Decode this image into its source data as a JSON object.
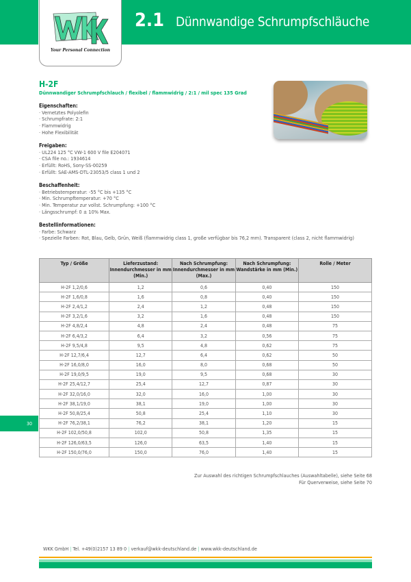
{
  "header": {
    "chapter": "2.1",
    "title": "Dünnwandige Schrumpfschläuche",
    "logo_text": "WKK",
    "tagline": "Your Personal Connection"
  },
  "product": {
    "name": "H-2F",
    "subtitle": "Dünnwandiger Schrumpfschlauch / flexibel / flammwidrig / 2:1 / mil spec 135 Grad"
  },
  "sections": [
    {
      "title": "Eigenschaften:",
      "items": [
        "· Vernetztes Polyolefin",
        "· Schrumpfrate: 2:1",
        "· Flammwidrig",
        "· Hohe Flexibilität"
      ]
    },
    {
      "title": "Freigaben:",
      "items": [
        "· UL224 125 °C VW-1 600 V file E204071",
        "· CSA file no.: 1934614",
        "· Erfüllt: RoHS, Sony-SS-00259",
        "· Erfüllt: SAE-AMS-DTL-23053/5 class 1 und 2"
      ]
    },
    {
      "title": "Beschaffenheit:",
      "items": [
        "· Betriebstemperatur: -55 °C bis +135 °C",
        "· Min. Schrumpftemperatur: +70 °C",
        "· Min. Temperatur zur vollst. Schrumpfung: +100 °C",
        "· Längsschrumpf: 0 ± 10% Max."
      ]
    },
    {
      "title": "Bestellinformationen:",
      "items": [
        "· Farbe: Schwarz",
        "· Spezielle Farben: Rot, Blau, Gelb, Grün, Weiß (flammwidrig class 1, große verfügbar bis 76,2 mm). Transparent (class 2, nicht flammwidrig)"
      ]
    }
  ],
  "table": {
    "headers": [
      "Typ / Größe",
      "Lieferzustand: Innendurchmesser in mm (Min.)",
      "Nach Schrumpfung: Innendurchmesser in mm (Max.)",
      "Nach Schrumpfung: Wandstärke in mm (Min.)",
      "Rolle / Meter"
    ],
    "rows": [
      [
        "H-2F 1,2/0,6",
        "1,2",
        "0,6",
        "0,40",
        "150"
      ],
      [
        "H-2F 1,6/0,8",
        "1,6",
        "0,8",
        "0,40",
        "150"
      ],
      [
        "H-2F 2,4/1,2",
        "2,4",
        "1,2",
        "0,48",
        "150"
      ],
      [
        "H-2F 3,2/1,6",
        "3,2",
        "1,6",
        "0,48",
        "150"
      ],
      [
        "H-2F 4,8/2,4",
        "4,8",
        "2,4",
        "0,48",
        "75"
      ],
      [
        "H-2F 6,4/3,2",
        "6,4",
        "3,2",
        "0,56",
        "75"
      ],
      [
        "H-2F 9,5/4,8",
        "9,5",
        "4,8",
        "0,62",
        "75"
      ],
      [
        "H-2F 12,7/6,4",
        "12,7",
        "6,4",
        "0,62",
        "50"
      ],
      [
        "H-2F 16,0/8,0",
        "16,0",
        "8,0",
        "0,68",
        "50"
      ],
      [
        "H-2F 19,0/9,5",
        "19,0",
        "9,5",
        "0,68",
        "30"
      ],
      [
        "H-2F 25,4/12,7",
        "25,4",
        "12,7",
        "0,87",
        "30"
      ],
      [
        "H-2F 32,0/16,0",
        "32,0",
        "16,0",
        "1,00",
        "30"
      ],
      [
        "H-2F 38,1/19,0",
        "38,1",
        "19,0",
        "1,00",
        "30"
      ],
      [
        "H-2F 50,8/25,4",
        "50,8",
        "25,4",
        "1,10",
        "30"
      ],
      [
        "H-2F 76,2/38,1",
        "76,2",
        "38,1",
        "1,20",
        "15"
      ],
      [
        "H-2F 102,0/50,8",
        "102,0",
        "50,8",
        "1,35",
        "15"
      ],
      [
        "H-2F 126,0/63,5",
        "126,0",
        "63,5",
        "1,40",
        "15"
      ],
      [
        "H-2F 150,0/76,0",
        "150,0",
        "76,0",
        "1,40",
        "15"
      ]
    ]
  },
  "page_number": "30",
  "notes": [
    "Zur Auswahl des richtigen Schrumpfschlauches (Auswahltabelle), siehe Seite 68",
    "Für Querverweise, siehe Seite 70"
  ],
  "footer": {
    "company": "WKK GmbH",
    "phone": "Tel. +49(0)2157 13 89 0",
    "email": "verkauf@wkk-deutschland.de",
    "web": "www.wkk-deutschland.de"
  },
  "colors": {
    "brand_green": "#00b26e",
    "light_green": "#86e0b8",
    "orange": "#f7a800"
  }
}
